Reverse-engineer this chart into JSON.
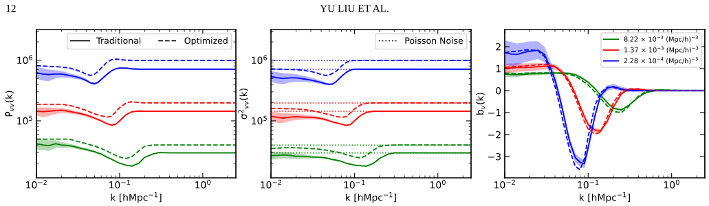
{
  "chart_data": [
    {
      "type": "line",
      "annotations": [
        "12",
        "YU LIU ET AL."
      ],
      "xlabel": "k [hMpc$^{−1}$]",
      "ylabel": "P̂$_{vv}$(k)",
      "log": "xy",
      "legend": "top right",
      "xlim": [
        0.01,
        2.5
      ],
      "ylim": [
        11500,
        3200000
      ],
      "xticks": [
        {
          "value": 0.01,
          "label": "10$^{−2}$"
        },
        {
          "value": 0.1,
          "label": "10$^{−1}$"
        },
        {
          "value": 1,
          "label": "10$^{0}$"
        }
      ],
      "yticks": [
        {
          "value": 100000,
          "label": "10$^{5}$"
        },
        {
          "value": 1000000,
          "label": "10$^{6}$"
        }
      ],
      "x": [
        0.01,
        0.012,
        0.014,
        0.017,
        0.02,
        0.025,
        0.03,
        0.035,
        0.04,
        0.045,
        0.05,
        0.055,
        0.06,
        0.07,
        0.08,
        0.09,
        0.1,
        0.12,
        0.14,
        0.17,
        0.2,
        0.25,
        0.3,
        0.4,
        0.5,
        0.7,
        1,
        1.5,
        2.5
      ],
      "series": [
        {
          "name": "Traditional",
          "color": "#000000",
          "line_style": "solid",
          "values": [
            null,
            null,
            null,
            null,
            null,
            null,
            null,
            null,
            null,
            null,
            null,
            null,
            null,
            null,
            null,
            null,
            null,
            null,
            null,
            null,
            null,
            null,
            null,
            null,
            null,
            null,
            null,
            null,
            null
          ]
        },
        {
          "name": "Optimized",
          "color": "#000000",
          "line_style": "dashed",
          "values": [
            null,
            null,
            null,
            null,
            null,
            null,
            null,
            null,
            null,
            null,
            null,
            null,
            null,
            null,
            null,
            null,
            null,
            null,
            null,
            null,
            null,
            null,
            null,
            null,
            null,
            null,
            null,
            null,
            null
          ]
        },
        {
          "color": "#0000ff",
          "line_style": "solid",
          "values": [
            620000,
            590000,
            580000,
            590000,
            590000,
            560000,
            530000,
            500000,
            460000,
            420000,
            410000,
            430000,
            480000,
            580000,
            670000,
            720000,
            740000,
            740000,
            720000,
            710000,
            710000,
            710000,
            710000,
            710000,
            710000,
            710000,
            710000,
            710000,
            710000
          ],
          "lower": [
            500000,
            460000,
            450000,
            500000,
            520000,
            510000,
            490000,
            470000,
            440000,
            400000,
            390000,
            410000,
            460000,
            560000,
            650000,
            700000,
            720000,
            720000,
            700000,
            695000,
            695000,
            695000,
            695000,
            695000,
            695000,
            695000,
            695000,
            695000,
            695000
          ],
          "upper": [
            760000,
            740000,
            700000,
            680000,
            660000,
            610000,
            570000,
            530000,
            490000,
            440000,
            430000,
            450000,
            500000,
            600000,
            690000,
            740000,
            760000,
            760000,
            740000,
            725000,
            725000,
            725000,
            725000,
            725000,
            725000,
            725000,
            725000,
            725000,
            725000
          ]
        },
        {
          "color": "#0000ff",
          "line_style": "dashed",
          "values": [
            810000,
            800000,
            790000,
            780000,
            770000,
            740000,
            690000,
            640000,
            580000,
            560000,
            590000,
            650000,
            740000,
            920000,
            1020000,
            1040000,
            1030000,
            1000000,
            990000,
            990000,
            990000,
            990000,
            990000,
            990000,
            990000,
            990000,
            990000,
            990000,
            990000
          ]
        },
        {
          "color": "#ff0000",
          "line_style": "solid",
          "values": [
            144000,
            142000,
            144000,
            147000,
            150000,
            143000,
            136000,
            130000,
            124000,
            117000,
            111000,
            105000,
            100000,
            90000,
            85000,
            88000,
            100000,
            127000,
            141000,
            145000,
            144000,
            144000,
            144000,
            144000,
            144000,
            144000,
            144000,
            144000,
            144000
          ],
          "lower": [
            122000,
            115000,
            120000,
            130000,
            135000,
            132000,
            127000,
            122000,
            117000,
            111000,
            106000,
            100000,
            96000,
            87000,
            82000,
            85000,
            97000,
            124000,
            138000,
            142000,
            142000,
            142000,
            142000,
            142000,
            142000,
            142000,
            142000,
            142000,
            142000
          ],
          "upper": [
            166000,
            166000,
            166000,
            163000,
            163000,
            154000,
            145000,
            138000,
            131000,
            123000,
            116000,
            110000,
            104000,
            93000,
            88000,
            91000,
            103000,
            130000,
            144000,
            148000,
            146000,
            146000,
            146000,
            146000,
            146000,
            146000,
            146000,
            146000,
            146000
          ]
        },
        {
          "color": "#ff0000",
          "line_style": "dashed",
          "values": [
            187000,
            187000,
            187000,
            188000,
            187000,
            180000,
            168000,
            158000,
            148000,
            138000,
            130000,
            125000,
            121000,
            115000,
            119000,
            141000,
            165000,
            197000,
            206000,
            200000,
            197000,
            197000,
            197000,
            197000,
            197000,
            197000,
            197000,
            197000,
            197000
          ]
        },
        {
          "color": "#008000",
          "line_style": "solid",
          "values": [
            42000,
            40000,
            39000,
            42000,
            40000,
            39000,
            37000,
            35000,
            33700,
            32000,
            31000,
            29500,
            28400,
            25400,
            23300,
            21500,
            20000,
            18600,
            18000,
            20000,
            25000,
            28400,
            30000,
            29600,
            29600,
            29600,
            29600,
            29600,
            29600
          ],
          "lower": [
            34000,
            33000,
            32000,
            36000,
            36000,
            36000,
            34500,
            33000,
            32000,
            30500,
            29700,
            28400,
            27400,
            24700,
            22700,
            21000,
            19500,
            18200,
            17600,
            19600,
            24600,
            28000,
            29600,
            29300,
            29300,
            29300,
            29300,
            29300,
            29300
          ],
          "upper": [
            52000,
            50000,
            48000,
            48000,
            45000,
            42000,
            39500,
            37000,
            35500,
            33500,
            32300,
            30600,
            29400,
            26100,
            23900,
            22000,
            20500,
            19000,
            18400,
            20400,
            25400,
            28800,
            30400,
            30000,
            30000,
            30000,
            30000,
            30000,
            30000
          ]
        },
        {
          "color": "#008000",
          "line_style": "dashed",
          "values": [
            50000,
            50000,
            50000,
            50000,
            50000,
            50000,
            46500,
            44000,
            42000,
            40000,
            38500,
            36500,
            35000,
            32000,
            29000,
            27000,
            25400,
            24000,
            25500,
            32000,
            38000,
            40000,
            40000,
            40000,
            40000,
            40000,
            40000,
            40000,
            40000
          ]
        }
      ]
    },
    {
      "type": "line",
      "xlabel": "k [hMpc$^{−1}$]",
      "ylabel": "σ$^{2}$$_{vv}$(k)",
      "log": "xy",
      "legend": "top right",
      "xlim": [
        0.01,
        2.5
      ],
      "ylim": [
        11500,
        3200000
      ],
      "xticks": [
        {
          "value": 0.01,
          "label": "10$^{−2}$"
        },
        {
          "value": 0.1,
          "label": "10$^{−1}$"
        },
        {
          "value": 1,
          "label": "10$^{0}$"
        }
      ],
      "yticks": [
        {
          "value": 100000,
          "label": "10$^{5}$"
        },
        {
          "value": 1000000,
          "label": "10$^{6}$"
        }
      ],
      "ref_lines": [
        {
          "axis": "y",
          "value": 990000,
          "color": "#0000ff",
          "line_style": "dotted"
        },
        {
          "axis": "y",
          "value": 710000,
          "color": "#0000ff",
          "line_style": "dotted"
        },
        {
          "axis": "y",
          "value": 197000,
          "color": "#ff0000",
          "line_style": "dotted"
        },
        {
          "axis": "y",
          "value": 144000,
          "color": "#ff0000",
          "line_style": "dotted"
        },
        {
          "axis": "y",
          "value": 40000,
          "color": "#008000",
          "line_style": "dotted"
        },
        {
          "axis": "y",
          "value": 29600,
          "color": "#008000",
          "line_style": "dotted"
        }
      ],
      "x": [
        0.01,
        0.012,
        0.014,
        0.017,
        0.02,
        0.025,
        0.03,
        0.035,
        0.04,
        0.045,
        0.05,
        0.055,
        0.06,
        0.07,
        0.08,
        0.09,
        0.1,
        0.12,
        0.14,
        0.17,
        0.2,
        0.25,
        0.3,
        0.4,
        0.5,
        0.7,
        1,
        1.5,
        2.5
      ],
      "series": [
        {
          "name": "Poisson Noise",
          "color": "#000000",
          "line_style": "dotted",
          "values": [
            null,
            null,
            null,
            null,
            null,
            null,
            null,
            null,
            null,
            null,
            null,
            null,
            null,
            null,
            null,
            null,
            null,
            null,
            null,
            null,
            null,
            null,
            null,
            null,
            null,
            null,
            null,
            null,
            null
          ]
        },
        {
          "color": "#0000ff",
          "line_style": "solid",
          "values": [
            540000,
            510000,
            500000,
            510000,
            510000,
            490000,
            470000,
            450000,
            430000,
            410000,
            400000,
            405000,
            440000,
            540000,
            630000,
            690000,
            710000,
            710000,
            710000,
            710000,
            710000,
            710000,
            710000,
            710000,
            710000,
            710000,
            710000,
            710000,
            710000
          ],
          "lower": [
            440000,
            410000,
            400000,
            430000,
            440000,
            440000,
            430000,
            420000,
            400000,
            390000,
            385000,
            390000,
            425000,
            525000,
            615000,
            675000,
            695000,
            695000,
            695000,
            695000,
            695000,
            695000,
            695000,
            695000,
            695000,
            695000,
            695000,
            695000,
            695000
          ],
          "upper": [
            660000,
            630000,
            610000,
            600000,
            590000,
            550000,
            520000,
            485000,
            460000,
            430000,
            415000,
            420000,
            455000,
            555000,
            645000,
            705000,
            725000,
            725000,
            725000,
            725000,
            725000,
            725000,
            725000,
            725000,
            725000,
            725000,
            725000,
            725000,
            725000
          ]
        },
        {
          "color": "#0000ff",
          "line_style": "dashed",
          "values": [
            720000,
            710000,
            710000,
            700000,
            700000,
            680000,
            650000,
            620000,
            580000,
            560000,
            570000,
            610000,
            650000,
            800000,
            920000,
            970000,
            990000,
            990000,
            990000,
            990000,
            990000,
            990000,
            990000,
            990000,
            990000,
            990000,
            990000,
            990000,
            990000
          ]
        },
        {
          "color": "#ff0000",
          "line_style": "solid",
          "values": [
            119000,
            114000,
            111000,
            115000,
            117000,
            115000,
            114000,
            112000,
            109000,
            105000,
            100000,
            96000,
            93000,
            88000,
            84000,
            87000,
            100000,
            124000,
            138000,
            144000,
            144000,
            144000,
            144000,
            144000,
            144000,
            144000,
            144000,
            144000,
            144000
          ],
          "lower": [
            98000,
            93000,
            92000,
            100000,
            103000,
            105000,
            106000,
            105000,
            103000,
            100000,
            96000,
            93000,
            90000,
            86000,
            82000,
            85000,
            98000,
            122000,
            136000,
            142000,
            142000,
            142000,
            142000,
            142000,
            142000,
            142000,
            142000,
            142000,
            142000
          ],
          "upper": [
            142000,
            138000,
            133000,
            132000,
            131000,
            126000,
            123000,
            119000,
            115000,
            110000,
            104000,
            99000,
            96000,
            90000,
            86000,
            89000,
            102000,
            126000,
            140000,
            146000,
            146000,
            146000,
            146000,
            146000,
            146000,
            146000,
            146000,
            146000,
            146000
          ]
        },
        {
          "color": "#ff0000",
          "line_style": "dashed",
          "values": [
            160000,
            160000,
            159000,
            158000,
            157000,
            153000,
            148000,
            142000,
            136000,
            131000,
            127000,
            122000,
            118000,
            114000,
            117000,
            136000,
            157000,
            184000,
            195000,
            198000,
            197000,
            197000,
            197000,
            197000,
            197000,
            197000,
            197000,
            197000,
            197000
          ]
        },
        {
          "color": "#008000",
          "line_style": "solid",
          "values": [
            26700,
            27000,
            27500,
            27000,
            26000,
            26000,
            25400,
            25200,
            25000,
            24500,
            23800,
            23000,
            22500,
            21500,
            20000,
            19300,
            18700,
            18200,
            18000,
            20000,
            24000,
            28000,
            29600,
            29600,
            29600,
            29600,
            29600,
            29600,
            29600
          ],
          "lower": [
            23000,
            23500,
            24000,
            23500,
            23500,
            24000,
            24000,
            24000,
            24000,
            23500,
            23000,
            22300,
            21800,
            20900,
            19500,
            18900,
            18300,
            17800,
            17600,
            19600,
            23600,
            27600,
            29200,
            29200,
            29200,
            29200,
            29200,
            29200,
            29200
          ],
          "upper": [
            31000,
            31000,
            31000,
            30500,
            29000,
            28200,
            27000,
            26500,
            26000,
            25500,
            24600,
            23700,
            23200,
            22100,
            20500,
            19700,
            19100,
            18600,
            18400,
            20400,
            24400,
            28400,
            30000,
            30000,
            30000,
            30000,
            30000,
            30000,
            30000
          ]
        },
        {
          "color": "#008000",
          "line_style": "dashed",
          "values": [
            35000,
            35500,
            36000,
            36000,
            36000,
            35500,
            35000,
            34500,
            33700,
            33000,
            32200,
            31500,
            31000,
            29500,
            27600,
            26500,
            25400,
            24500,
            27000,
            33000,
            38000,
            39500,
            40000,
            40000,
            40000,
            40000,
            40000,
            40000,
            40000
          ]
        }
      ]
    },
    {
      "type": "line",
      "xlabel": "k [hMpc$^{−1}$]",
      "ylabel": "b$_{v}$(k)",
      "log": "x",
      "legend": "top right",
      "xlim": [
        0.01,
        2.5
      ],
      "ylim": [
        -3.97,
        2.78
      ],
      "xticks": [
        {
          "value": 0.01,
          "label": "10$^{−2}$"
        },
        {
          "value": 0.1,
          "label": "10$^{−1}$"
        },
        {
          "value": 1,
          "label": "10$^{0}$"
        }
      ],
      "yticks": [
        {
          "value": -3,
          "label": "−3"
        },
        {
          "value": -2,
          "label": "−2"
        },
        {
          "value": -1,
          "label": "−1"
        },
        0,
        1,
        2
      ],
      "x": [
        0.01,
        0.012,
        0.014,
        0.017,
        0.02,
        0.025,
        0.03,
        0.035,
        0.04,
        0.045,
        0.05,
        0.055,
        0.06,
        0.07,
        0.08,
        0.09,
        0.1,
        0.12,
        0.14,
        0.17,
        0.2,
        0.25,
        0.3,
        0.4,
        0.5,
        0.7,
        1,
        1.5,
        2.5
      ],
      "series": [
        {
          "name": "8.22 × 10$^{−3}$ (Mpc/h)$^{−3}$",
          "color": "#008000",
          "line_style": "solid",
          "values": [
            0.75,
            0.73,
            0.72,
            0.74,
            0.76,
            0.77,
            0.78,
            0.79,
            0.8,
            0.8,
            0.8,
            0.79,
            0.78,
            0.72,
            0.62,
            0.5,
            0.38,
            0.1,
            -0.2,
            -0.55,
            -0.8,
            -0.88,
            -0.7,
            -0.3,
            -0.08,
            0.03,
            0.01,
            0,
            0
          ],
          "lower": [
            0.63,
            0.61,
            0.62,
            0.66,
            0.68,
            0.7,
            0.72,
            0.74,
            0.75,
            0.75,
            0.75,
            0.74,
            0.73,
            0.67,
            0.57,
            0.45,
            0.33,
            0.05,
            -0.25,
            -0.6,
            -0.85,
            -0.93,
            -0.74,
            -0.33,
            -0.1,
            0.01,
            -0.01,
            -0.02,
            -0.02
          ],
          "upper": [
            0.87,
            0.85,
            0.82,
            0.82,
            0.84,
            0.84,
            0.84,
            0.84,
            0.85,
            0.85,
            0.85,
            0.84,
            0.83,
            0.77,
            0.67,
            0.55,
            0.43,
            0.15,
            -0.15,
            -0.5,
            -0.75,
            -0.83,
            -0.66,
            -0.27,
            -0.06,
            0.05,
            0.03,
            0.02,
            0.02
          ]
        },
        {
          "name": "1.37 × 10$^{−3}$ (Mpc/h)$^{−3}$",
          "color": "#ff0000",
          "line_style": "solid",
          "values": [
            1.01,
            1.03,
            1.05,
            1.05,
            1.06,
            1.09,
            1.11,
            1.11,
            1.08,
            0.96,
            0.8,
            0.61,
            0.39,
            -0.14,
            -0.71,
            -1.18,
            -1.54,
            -1.8,
            -1.85,
            -1.39,
            -0.76,
            -0.14,
            0.04,
            0.07,
            0.02,
            0,
            0,
            0,
            0
          ],
          "lower": [
            0.81,
            0.83,
            0.85,
            0.87,
            0.88,
            0.93,
            0.96,
            0.97,
            0.96,
            0.86,
            0.7,
            0.51,
            0.29,
            -0.24,
            -0.81,
            -1.28,
            -1.64,
            -1.9,
            -1.95,
            -1.47,
            -0.84,
            -0.2,
            -0.01,
            0.03,
            -0.01,
            -0.02,
            -0.02,
            -0.02,
            -0.02
          ],
          "upper": [
            1.21,
            1.23,
            1.25,
            1.23,
            1.24,
            1.25,
            1.26,
            1.25,
            1.2,
            1.06,
            0.9,
            0.71,
            0.49,
            -0.04,
            -0.61,
            -1.08,
            -1.44,
            -1.7,
            -1.75,
            -1.31,
            -0.68,
            -0.08,
            0.09,
            0.11,
            0.05,
            0.02,
            0.02,
            0.02,
            0.02
          ]
        },
        {
          "name": "2.28 × 10$^{−4}$ (Mpc/h)$^{−3}$",
          "color": "#0000ff",
          "line_style": "solid",
          "values": [
            1.74,
            1.66,
            1.64,
            1.74,
            1.79,
            1.84,
            1.64,
            1.06,
            0.49,
            -0.24,
            -0.97,
            -1.7,
            -2.32,
            -3.05,
            -3.26,
            -3.33,
            -2.6,
            -1.18,
            -0.24,
            0.12,
            0.18,
            0.08,
            0.02,
            0,
            0,
            0,
            0,
            0,
            0
          ],
          "lower": [
            1.19,
            1.11,
            1.14,
            1.29,
            1.34,
            1.44,
            1.29,
            0.76,
            0.24,
            -0.44,
            -1.17,
            -1.9,
            -2.52,
            -3.25,
            -3.46,
            -3.53,
            -2.8,
            -1.33,
            -0.39,
            0.0,
            0.06,
            -0.02,
            -0.06,
            -0.06,
            -0.05,
            -0.05,
            -0.05,
            -0.05,
            -0.05
          ],
          "upper": [
            2.29,
            2.21,
            2.14,
            2.19,
            2.24,
            2.24,
            1.99,
            1.36,
            0.74,
            -0.04,
            -0.77,
            -1.5,
            -2.12,
            -2.85,
            -3.06,
            -3.13,
            -2.4,
            -1.03,
            -0.09,
            0.24,
            0.3,
            0.18,
            0.1,
            0.06,
            0.05,
            0.05,
            0.05,
            0.05,
            0.05
          ]
        },
        {
          "color": "#008000",
          "line_style": "dashed",
          "values": [
            0.8,
            0.78,
            0.77,
            0.79,
            0.8,
            0.8,
            0.81,
            0.81,
            0.8,
            0.8,
            0.78,
            0.76,
            0.73,
            0.65,
            0.52,
            0.38,
            0.25,
            -0.05,
            -0.35,
            -0.7,
            -0.95,
            -1.0,
            -0.75,
            -0.25,
            -0.03,
            0.04,
            0.01,
            0,
            0
          ]
        },
        {
          "color": "#ff0000",
          "line_style": "dashed",
          "values": [
            1.06,
            1.08,
            1.1,
            1.12,
            1.15,
            1.17,
            1.19,
            1.17,
            1.1,
            0.95,
            0.75,
            0.52,
            0.28,
            -0.3,
            -0.9,
            -1.4,
            -1.75,
            -1.98,
            -1.9,
            -1.2,
            -0.55,
            -0.05,
            0.08,
            0.08,
            0.02,
            0,
            0,
            0,
            0
          ]
        },
        {
          "color": "#0000ff",
          "line_style": "dashed",
          "values": [
            1.72,
            1.78,
            1.78,
            1.85,
            1.85,
            1.82,
            1.55,
            0.9,
            0.2,
            -0.6,
            -1.4,
            -2.1,
            -2.7,
            -3.45,
            -3.6,
            -3.1,
            -2.1,
            -0.7,
            -0.1,
            0.15,
            0.15,
            0.05,
            0.01,
            0,
            0,
            0,
            0,
            0,
            0
          ]
        }
      ]
    }
  ]
}
